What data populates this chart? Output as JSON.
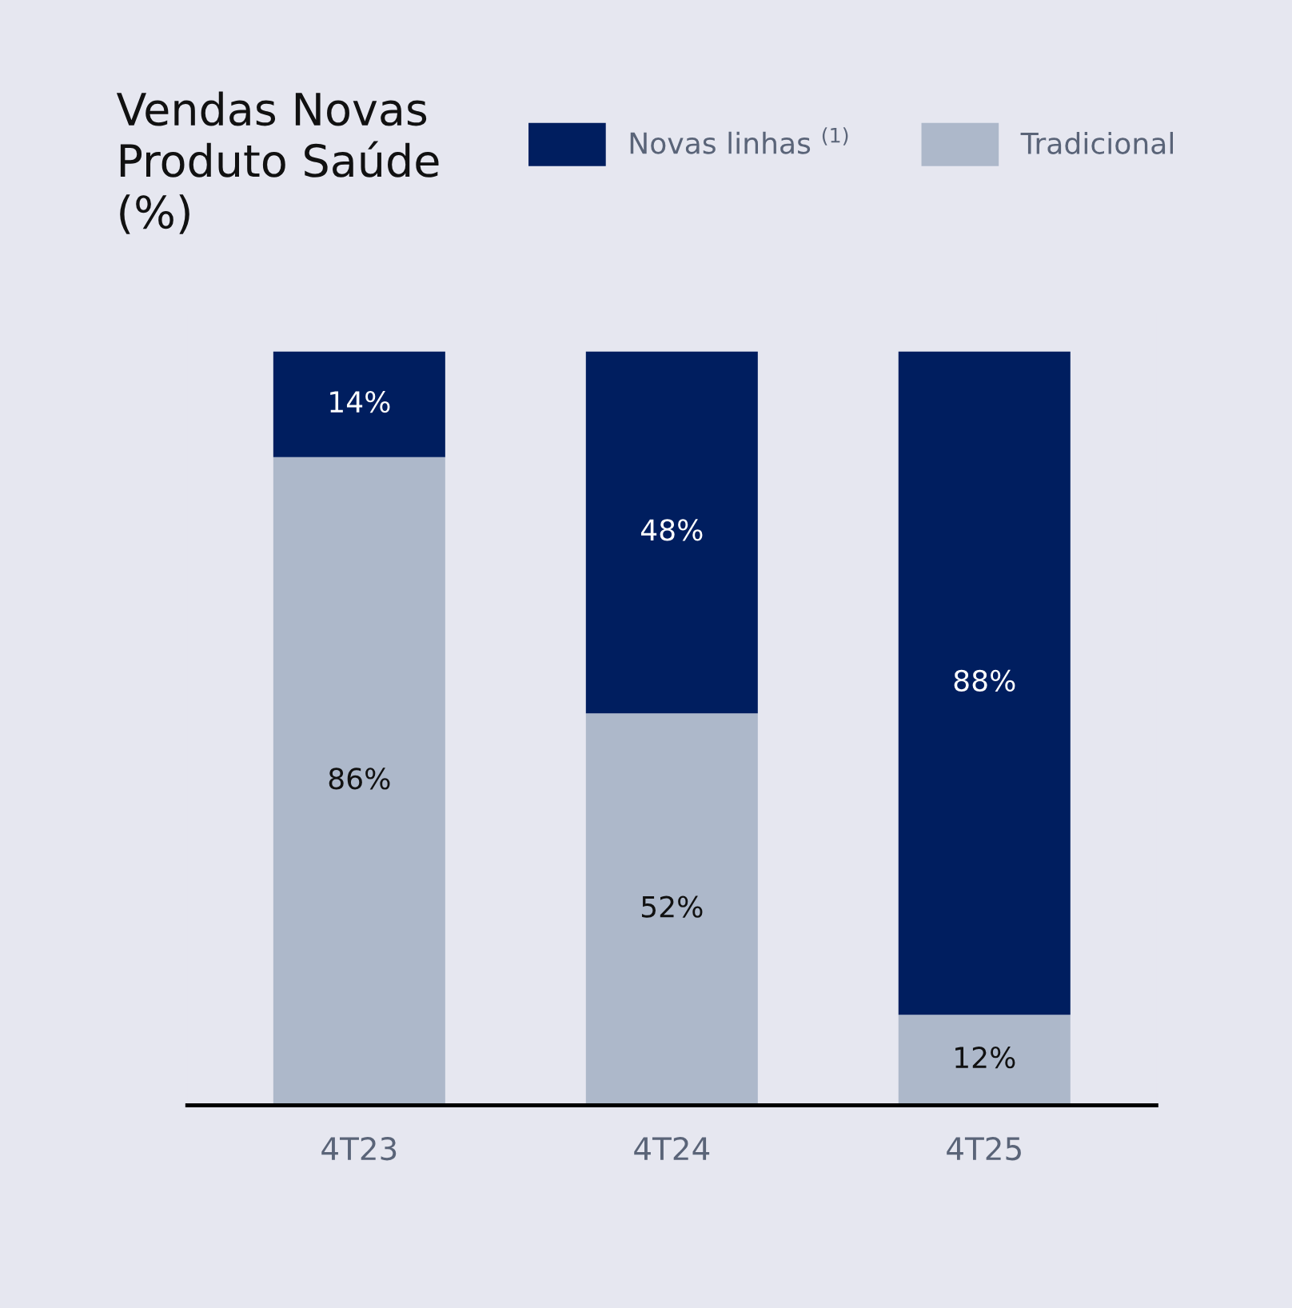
{
  "chart_data": {
    "type": "bar",
    "title": "Vendas Novas\nProduto Saúde\n(%)",
    "stacked": true,
    "legend": "top right",
    "categories": [
      "4T23",
      "4T24",
      "4T25"
    ],
    "series": [
      {
        "name": "Tradicional",
        "color": "#adb8ca",
        "values": [
          86,
          52,
          12
        ],
        "value_labels": [
          "86%",
          "52%",
          "12%"
        ]
      },
      {
        "name": "Novas linhas $^{(1)}$",
        "color": "#001e5f",
        "values": [
          14,
          48,
          88
        ],
        "value_labels": [
          "14%",
          "48%",
          "88%"
        ]
      }
    ]
  }
}
